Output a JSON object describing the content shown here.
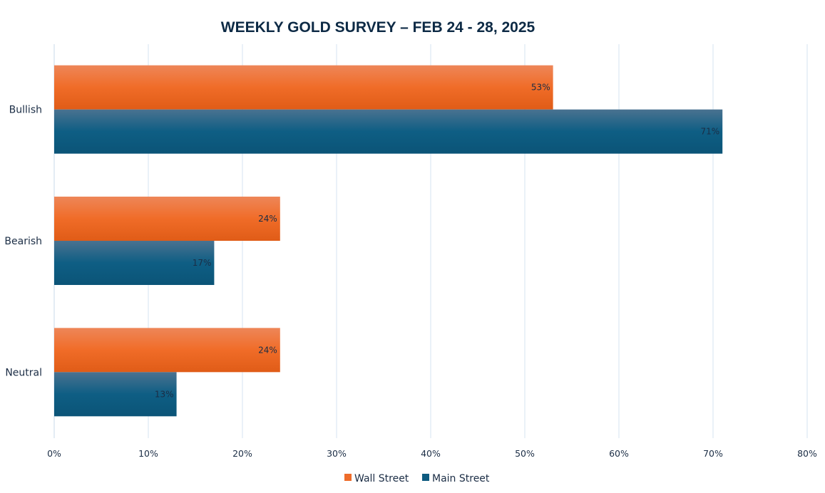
{
  "chart_data": {
    "type": "bar",
    "orientation": "horizontal",
    "title": "WEEKLY GOLD SURVEY – FEB 24 - 28, 2025",
    "categories": [
      "Bullish",
      "Bearish",
      "Neutral"
    ],
    "series": [
      {
        "name": "Wall Street",
        "values": [
          53,
          24,
          24
        ],
        "labels": [
          "53%",
          "24%",
          "24%"
        ],
        "color": "#ee6c2a"
      },
      {
        "name": "Main Street",
        "values": [
          71,
          17,
          13
        ],
        "labels": [
          "71%",
          "17%",
          "13%"
        ],
        "color": "#0e5b80"
      }
    ],
    "xlim": [
      0,
      80
    ],
    "xticks": [
      "0%",
      "10%",
      "20%",
      "30%",
      "40%",
      "50%",
      "60%",
      "70%",
      "80%"
    ],
    "grid": "vertical",
    "legend": "bottom",
    "xlabel": "",
    "ylabel": ""
  }
}
